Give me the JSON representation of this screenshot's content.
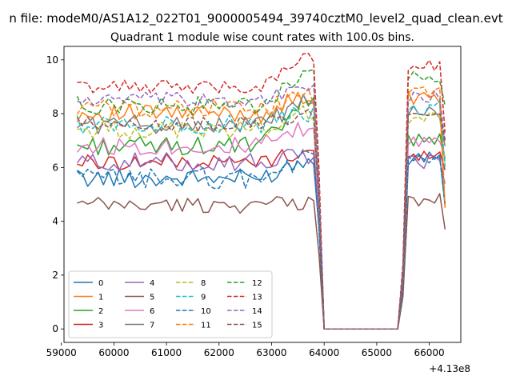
{
  "figure": {
    "suptitle": "n file: modeM0/AS1A12_022T01_9000005494_39740cztM0_level2_quad_clean.evt",
    "title": "Quadrant 1 module wise count rates with 100.0s bins."
  },
  "chart_data": {
    "type": "line",
    "title": "Quadrant 1 module wise count rates with 100.0s bins.",
    "xlabel": "",
    "ylabel": "",
    "x_offset_label": "+4.13e8",
    "xlim": [
      59050,
      66600
    ],
    "ylim": [
      -0.5,
      10.5
    ],
    "xticks": [
      59000,
      60000,
      61000,
      62000,
      63000,
      64000,
      65000,
      66000
    ],
    "xtick_labels": [
      "59000",
      "60000",
      "61000",
      "62000",
      "63000",
      "64000",
      "65000",
      "66000"
    ],
    "yticks": [
      0,
      2,
      4,
      6,
      8,
      10
    ],
    "ytick_labels": [
      "0",
      "2",
      "4",
      "6",
      "8",
      "10"
    ],
    "x_range": {
      "start": 59300,
      "step": 100,
      "count": 71
    },
    "gap": {
      "last_before": 63900,
      "first_zero": 64000,
      "last_zero": 65400,
      "first_after": 65500
    },
    "legend_loc": "lower left",
    "legend_ncol": 4,
    "series": [
      {
        "name": "0",
        "color": "#1f77b4",
        "dash": "solid",
        "base": 5.6,
        "amp": 0.35,
        "pre_end": 6.3,
        "post_peak": 6.3,
        "post_end": 4.6
      },
      {
        "name": "1",
        "color": "#ff7f0e",
        "dash": "solid",
        "base": 8.0,
        "amp": 0.35,
        "pre_end": 8.6,
        "post_peak": 8.6,
        "post_end": 4.5
      },
      {
        "name": "2",
        "color": "#2ca02c",
        "dash": "solid",
        "base": 6.8,
        "amp": 0.35,
        "pre_end": 8.4,
        "post_peak": 7.0,
        "post_end": 6.3
      },
      {
        "name": "3",
        "color": "#d62728",
        "dash": "solid",
        "base": 6.2,
        "amp": 0.3,
        "pre_end": 6.6,
        "post_peak": 6.4,
        "post_end": 5.9
      },
      {
        "name": "4",
        "color": "#9467bd",
        "dash": "solid",
        "base": 6.2,
        "amp": 0.35,
        "pre_end": 6.4,
        "post_peak": 6.2,
        "post_end": 5.4
      },
      {
        "name": "5",
        "color": "#8c564b",
        "dash": "solid",
        "base": 4.6,
        "amp": 0.3,
        "pre_end": 4.7,
        "post_peak": 4.8,
        "post_end": 3.7
      },
      {
        "name": "6",
        "color": "#e377c2",
        "dash": "solid",
        "base": 6.8,
        "amp": 0.35,
        "pre_end": 7.4,
        "post_peak": 7.0,
        "post_end": 6.4
      },
      {
        "name": "7",
        "color": "#7f7f7f",
        "dash": "solid",
        "base": 7.6,
        "amp": 0.35,
        "pre_end": 8.4,
        "post_peak": 8.0,
        "post_end": 6.8
      },
      {
        "name": "8",
        "color": "#bcbd22",
        "dash": "dashed",
        "base": 7.4,
        "amp": 0.35,
        "pre_end": 8.0,
        "post_peak": 7.8,
        "post_end": 6.2
      },
      {
        "name": "9",
        "color": "#17becf",
        "dash": "dashed",
        "base": 7.6,
        "amp": 0.35,
        "pre_end": 8.0,
        "post_peak": 8.2,
        "post_end": 6.0
      },
      {
        "name": "10",
        "color": "#1f77b4",
        "dash": "dashed",
        "base": 5.6,
        "amp": 0.4,
        "pre_end": 6.3,
        "post_peak": 6.2,
        "post_end": 4.6
      },
      {
        "name": "11",
        "color": "#ff7f0e",
        "dash": "dashed",
        "base": 8.2,
        "amp": 0.35,
        "pre_end": 8.6,
        "post_peak": 8.8,
        "post_end": 4.5
      },
      {
        "name": "12",
        "color": "#2ca02c",
        "dash": "dashed",
        "base": 8.3,
        "amp": 0.35,
        "pre_end": 9.3,
        "post_peak": 9.3,
        "post_end": 8.3
      },
      {
        "name": "13",
        "color": "#d62728",
        "dash": "dashed",
        "base": 9.0,
        "amp": 0.25,
        "pre_end": 10.1,
        "post_peak": 9.8,
        "post_end": 7.3
      },
      {
        "name": "14",
        "color": "#9467bd",
        "dash": "dashed",
        "base": 8.5,
        "amp": 0.3,
        "pre_end": 9.0,
        "post_peak": 8.6,
        "post_end": 7.0
      },
      {
        "name": "15",
        "color": "#8c564b",
        "dash": "dashed",
        "base": 7.6,
        "amp": 0.3,
        "pre_end": 8.0,
        "post_peak": 8.0,
        "post_end": 7.0
      }
    ]
  }
}
